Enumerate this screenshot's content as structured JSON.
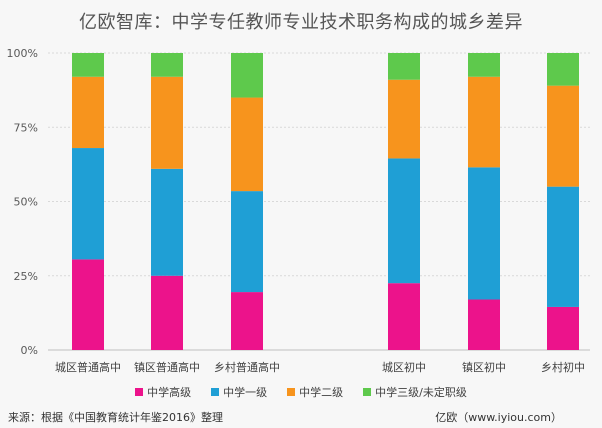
{
  "title": "亿欧智库：中学专任教师专业技术职务构成的城乡差异",
  "footer": {
    "source": "来源：根据《中国教育统计年鉴2016》整理",
    "brand": "亿欧（www.iyiou.com）"
  },
  "colors": {
    "senior": "#ec138b",
    "level1": "#1f9fd5",
    "level2": "#f7941d",
    "level3": "#5ec94c",
    "grid": "#d9d9d9",
    "axis": "#bfbfbf"
  },
  "chart_data": {
    "type": "bar",
    "stacked": true,
    "percent": true,
    "categories": [
      "城区普通高中",
      "镇区普通高中",
      "乡村普通高中",
      "",
      "城区初中",
      "镇区初中",
      "乡村初中"
    ],
    "yticks": [
      "0%",
      "25%",
      "50%",
      "75%",
      "100%"
    ],
    "ylim": [
      0,
      100
    ],
    "grid": true,
    "legend_position": "bottom",
    "series": [
      {
        "name": "中学高级",
        "color_key": "senior",
        "values": [
          30.5,
          25,
          19.5,
          null,
          22.5,
          17,
          14.5
        ]
      },
      {
        "name": "中学一级",
        "color_key": "level1",
        "values": [
          37.5,
          36,
          34,
          null,
          42,
          44.5,
          40.5
        ]
      },
      {
        "name": "中学二级",
        "color_key": "level2",
        "values": [
          24,
          31,
          31.5,
          null,
          26.5,
          30.5,
          34
        ]
      },
      {
        "name": "中学三级/未定职级",
        "color_key": "level3",
        "values": [
          8,
          8,
          15,
          null,
          9,
          8,
          11
        ]
      }
    ]
  }
}
